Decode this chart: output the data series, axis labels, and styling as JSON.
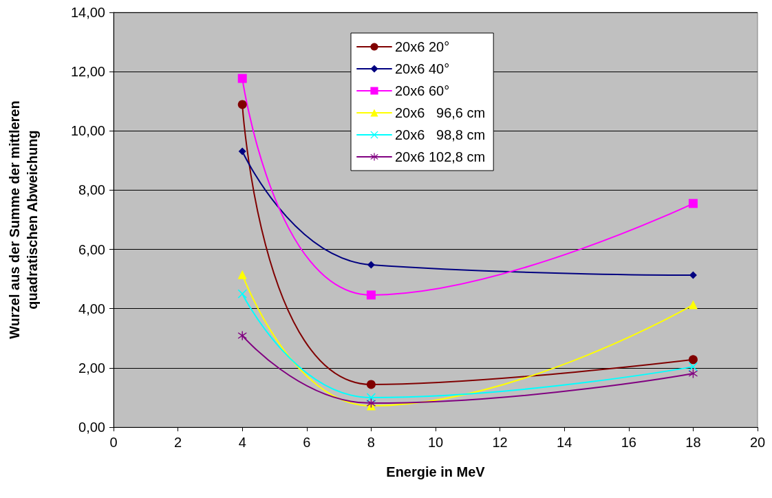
{
  "chart_data": {
    "type": "line",
    "xlabel": "Energie in MeV",
    "ylabel": "Wurzel aus der Summe der mittleren\nquadratischen Abweichung",
    "x": [
      4,
      8,
      18
    ],
    "series": [
      {
        "name": "20x6 20°",
        "color": "#800000",
        "marker": "circle",
        "values": [
          10.89,
          1.44,
          2.28
        ]
      },
      {
        "name": "20x6 40°",
        "color": "#000080",
        "marker": "diamond",
        "values": [
          9.31,
          5.48,
          5.13
        ]
      },
      {
        "name": "20x6 60°",
        "color": "#ff00ff",
        "marker": "square",
        "values": [
          11.77,
          4.46,
          7.55
        ]
      },
      {
        "name": "20x6   96,6 cm",
        "color": "#ffff00",
        "marker": "triangle",
        "values": [
          5.15,
          0.72,
          4.13
        ]
      },
      {
        "name": "20x6   98,8 cm",
        "color": "#00ffff",
        "marker": "cross",
        "values": [
          4.5,
          1.0,
          2.04
        ]
      },
      {
        "name": "20x6 102,8 cm",
        "color": "#800080",
        "marker": "star",
        "values": [
          3.09,
          0.81,
          1.81
        ]
      }
    ],
    "xlim": [
      0,
      20
    ],
    "xticks": [
      0,
      2,
      4,
      6,
      8,
      10,
      12,
      14,
      16,
      18,
      20
    ],
    "ylim": [
      0,
      14
    ],
    "yticks": [
      {
        "value": 0,
        "label": "0,00"
      },
      {
        "value": 2,
        "label": "2,00"
      },
      {
        "value": 4,
        "label": "4,00"
      },
      {
        "value": 6,
        "label": "6,00"
      },
      {
        "value": 8,
        "label": "8,00"
      },
      {
        "value": 10,
        "label": "10,00"
      },
      {
        "value": 12,
        "label": "12,00"
      },
      {
        "value": 14,
        "label": "14,00"
      }
    ],
    "grid": "y",
    "legend": "top",
    "line_style": "solid"
  }
}
